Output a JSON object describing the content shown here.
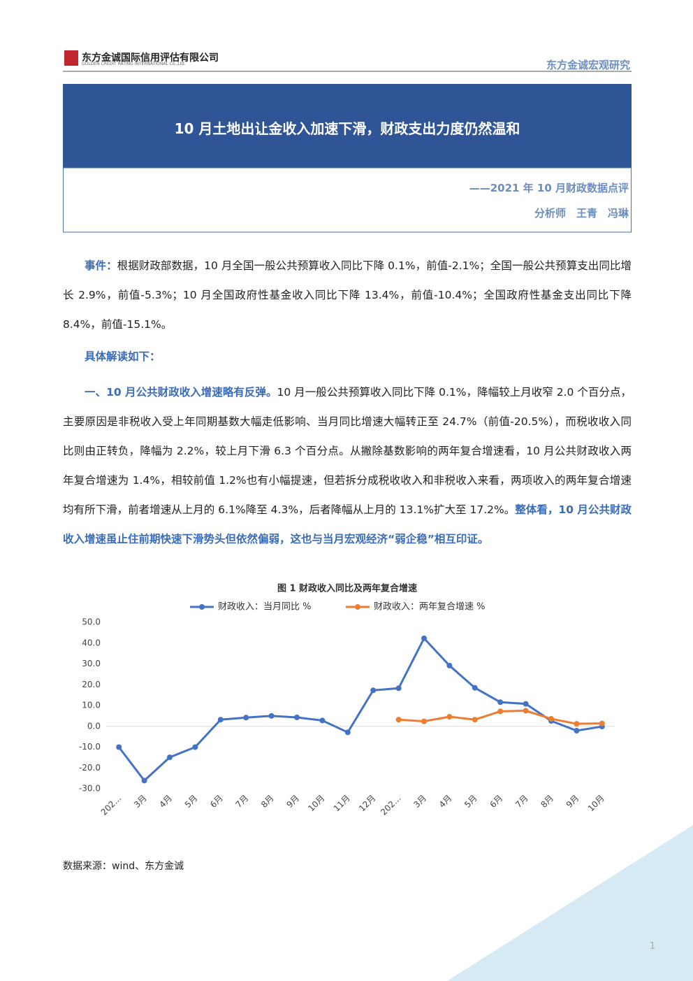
{
  "header": {
    "company_cn": "东方金诚国际信用评估有限公司",
    "company_en": "GOLDEN CREDIT RATING INTERNATIONAL Co.,Ltd.",
    "series_name": "东方金诚宏观研究"
  },
  "banner": {
    "title": "10 月土地出让金收入加速下滑，财政支出力度仍然温和",
    "subtitle": "——2021 年 10 月财政数据点评",
    "analysts": "分析师　王青　冯琳"
  },
  "body": {
    "event": {
      "label": "事件：",
      "text": "根据财政部数据，10 月全国一般公共预算收入同比下降 0.1%，前值-2.1%；全国一般公共预算支出同比增长 2.9%，前值-5.3%；10 月全国政府性基金收入同比下降 13.4%，前值-10.4%；全国政府性基金支出同比下降 8.4%，前值-15.1%。"
    },
    "heading": "具体解读如下：",
    "section1": {
      "lead": "一、10 月公共财政收入增速略有反弹。",
      "text": "10 月一般公共预算收入同比下降 0.1%，降幅较上月收窄 2.0 个百分点，主要原因是非税收入受上年同期基数大幅走低影响、当月同比增速大幅转正至 24.7%（前值-20.5%），而税收收入同比则由正转负，降幅为 2.2%，较上月下滑 6.3 个百分点。从撇除基数影响的两年复合增速看，10 月公共财政收入两年复合增速为 1.4%，相较前值 1.2%也有小幅提速，但若拆分成税收收入和非税收入来看，两项收入的两年复合增速均有所下滑，前者增速从上月的 6.1%降至 4.3%，后者降幅从上月的 13.1%扩大至 17.2%。",
      "conclusion": "整体看，10 月公共财政收入增速虽止住前期快速下滑势头但依然偏弱，这也与当月宏观经济“弱企稳”相互印证。"
    }
  },
  "chart_data": {
    "type": "line",
    "title": "图 1  财政收入同比及两年复合增速",
    "categories": [
      "202…",
      "3月",
      "4月",
      "5月",
      "6月",
      "7月",
      "8月",
      "9月",
      "10月",
      "11月",
      "12月",
      "202…",
      "3月",
      "4月",
      "5月",
      "6月",
      "7月",
      "8月",
      "9月",
      "10月"
    ],
    "series": [
      {
        "name": "财政收入：当月同比 %",
        "color": "#4472c4",
        "values": [
          -10.0,
          -26.1,
          -14.9,
          -10.0,
          3.2,
          4.2,
          5.0,
          4.3,
          2.8,
          -2.9,
          17.3,
          18.3,
          42.3,
          29.2,
          18.5,
          11.6,
          10.8,
          2.6,
          -2.1,
          -0.1
        ]
      },
      {
        "name": "财政收入：两年复合增速 %",
        "color": "#ed7d31",
        "values": [
          null,
          null,
          null,
          null,
          null,
          null,
          null,
          null,
          null,
          null,
          null,
          3.2,
          2.4,
          4.6,
          3.2,
          7.2,
          7.5,
          3.6,
          1.2,
          1.4
        ]
      }
    ],
    "ylim": [
      -30,
      50
    ],
    "yticks": [
      {
        "value": -30,
        "label": "-30.0"
      },
      {
        "value": -20,
        "label": "-20.0"
      },
      {
        "value": -10,
        "label": "-10.0"
      },
      {
        "value": 0,
        "label": "0.0"
      },
      {
        "value": 10,
        "label": "10.0"
      },
      {
        "value": 20,
        "label": "20.0"
      },
      {
        "value": 30,
        "label": "30.0"
      },
      {
        "value": 40,
        "label": "40.0"
      },
      {
        "value": 50,
        "label": "50.0"
      }
    ],
    "grid": false,
    "legend": "top"
  },
  "footer": {
    "source": "数据来源：wind、东方金诚",
    "page": 1
  }
}
